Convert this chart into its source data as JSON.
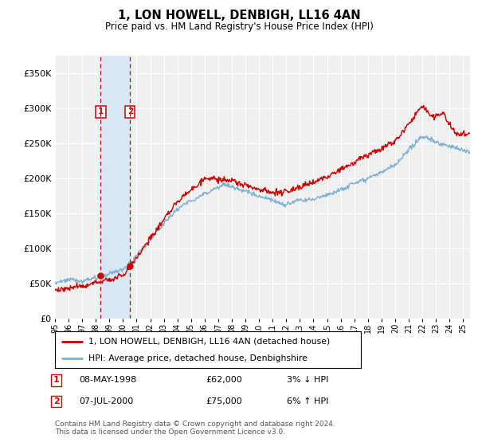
{
  "title": "1, LON HOWELL, DENBIGH, LL16 4AN",
  "subtitle": "Price paid vs. HM Land Registry's House Price Index (HPI)",
  "yticks": [
    0,
    50000,
    100000,
    150000,
    200000,
    250000,
    300000,
    350000
  ],
  "ylim": [
    0,
    375000
  ],
  "sale1": {
    "date_label": "1",
    "date": "08-MAY-1998",
    "price": 62000,
    "pct": "3%",
    "dir": "↓",
    "x": 1998.36
  },
  "sale2": {
    "date_label": "2",
    "date": "07-JUL-2000",
    "price": 75000,
    "pct": "6%",
    "dir": "↑",
    "x": 2000.52
  },
  "legend_line1": "1, LON HOWELL, DENBIGH, LL16 4AN (detached house)",
  "legend_line2": "HPI: Average price, detached house, Denbighshire",
  "line_color_red": "#cc0000",
  "line_color_blue": "#7ab0d4",
  "shade_color": "#d6e8f5",
  "footer": "Contains HM Land Registry data © Crown copyright and database right 2024.\nThis data is licensed under the Open Government Licence v3.0.",
  "xmin": 1995.0,
  "xmax": 2025.5,
  "bg_color": "#efefef"
}
